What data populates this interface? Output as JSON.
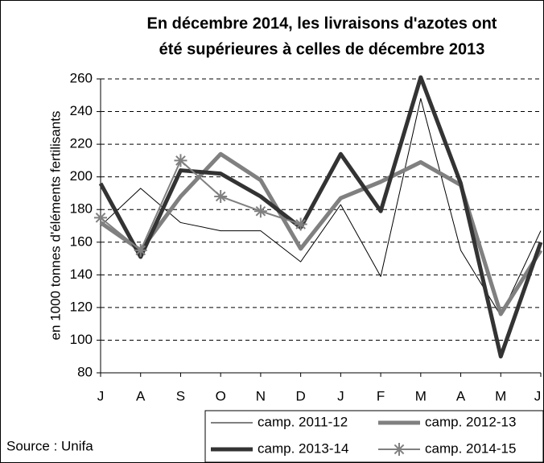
{
  "chart_data": {
    "type": "line",
    "title": [
      "En décembre 2014, les livraisons d'azotes ont",
      "été supérieures à celles de décembre 2013"
    ],
    "y_label": "en 1000 tonnes d'éléments fertilisants",
    "source": "Source : Unifa",
    "categories": [
      "J",
      "A",
      "S",
      "O",
      "N",
      "D",
      "J",
      "F",
      "M",
      "A",
      "M",
      "J"
    ],
    "ylim": [
      80,
      260
    ],
    "yticks": [
      80,
      100,
      120,
      140,
      160,
      180,
      200,
      220,
      240,
      260
    ],
    "grid": true,
    "series": [
      {
        "name": "camp. 2011-12",
        "color": "#000000",
        "line_width": 1,
        "values": [
          170,
          193,
          172,
          167,
          167,
          148,
          183,
          139,
          248,
          155,
          115,
          167
        ]
      },
      {
        "name": "camp. 2012-13",
        "color": "#808080",
        "line_width": 5,
        "values": [
          172,
          155,
          188,
          214,
          198,
          156,
          187,
          197,
          209,
          195,
          116,
          155
        ]
      },
      {
        "name": "camp. 2013-14",
        "color": "#333333",
        "line_width": 5,
        "values": [
          196,
          151,
          204,
          202,
          188,
          169,
          214,
          179,
          261,
          196,
          90,
          160
        ]
      },
      {
        "name": "camp. 2014-15",
        "color": "#808080",
        "line_width": 2,
        "marker": "star",
        "values": [
          175,
          155,
          210,
          188,
          179,
          171,
          null,
          null,
          null,
          null,
          null,
          null
        ]
      }
    ]
  }
}
